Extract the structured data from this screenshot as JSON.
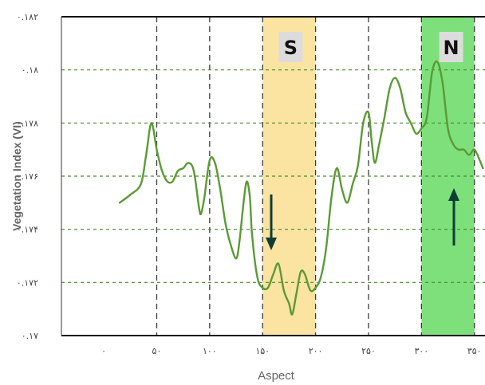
{
  "chart_data": {
    "type": "line",
    "title": "",
    "xlabel": "Aspect",
    "ylabel": "Vegetation Index (VI)",
    "xlim": [
      -40,
      360
    ],
    "ylim": [
      0.17,
      0.182
    ],
    "x_ticks": [
      0,
      50,
      100,
      150,
      200,
      250,
      300,
      350
    ],
    "x_tick_labels": [
      "۰",
      "۵۰",
      "۱۰۰",
      "۱۵۰",
      "۲۰۰",
      "۲۵۰",
      "۳۰۰",
      "۳۵۰"
    ],
    "y_ticks": [
      0.17,
      0.172,
      0.174,
      0.176,
      0.178,
      0.18,
      0.182
    ],
    "y_tick_labels": [
      "۰.۱۷",
      "۰.۱۷۲",
      "۰.۱۷۴",
      "۰.۱۷۶",
      "۰.۱۷۸",
      "۰.۱۸",
      "۰.۱۸۲"
    ],
    "grid": true,
    "series": [
      {
        "color": "#5b9a34",
        "points": [
          [
            15,
            0.175
          ],
          [
            25,
            0.1753
          ],
          [
            35,
            0.1757
          ],
          [
            40,
            0.1768
          ],
          [
            45,
            0.178
          ],
          [
            50,
            0.177
          ],
          [
            55,
            0.1762
          ],
          [
            60,
            0.1758
          ],
          [
            65,
            0.1758
          ],
          [
            70,
            0.1762
          ],
          [
            75,
            0.1763
          ],
          [
            80,
            0.1765
          ],
          [
            85,
            0.1762
          ],
          [
            90,
            0.1748
          ],
          [
            92,
            0.1746
          ],
          [
            95,
            0.1752
          ],
          [
            100,
            0.1766
          ],
          [
            105,
            0.1765
          ],
          [
            110,
            0.1755
          ],
          [
            115,
            0.1742
          ],
          [
            120,
            0.1734
          ],
          [
            125,
            0.1729
          ],
          [
            128,
            0.1735
          ],
          [
            132,
            0.175
          ],
          [
            135,
            0.1758
          ],
          [
            138,
            0.1752
          ],
          [
            140,
            0.1738
          ],
          [
            145,
            0.1722
          ],
          [
            150,
            0.1718
          ],
          [
            155,
            0.1718
          ],
          [
            160,
            0.1723
          ],
          [
            165,
            0.1727
          ],
          [
            170,
            0.1717
          ],
          [
            175,
            0.1712
          ],
          [
            178,
            0.1708
          ],
          [
            182,
            0.1716
          ],
          [
            186,
            0.1724
          ],
          [
            190,
            0.1723
          ],
          [
            195,
            0.1717
          ],
          [
            200,
            0.1718
          ],
          [
            205,
            0.1722
          ],
          [
            210,
            0.1733
          ],
          [
            215,
            0.1752
          ],
          [
            220,
            0.1763
          ],
          [
            225,
            0.1755
          ],
          [
            230,
            0.175
          ],
          [
            235,
            0.1757
          ],
          [
            240,
            0.1764
          ],
          [
            245,
            0.178
          ],
          [
            250,
            0.1784
          ],
          [
            253,
            0.1773
          ],
          [
            256,
            0.1765
          ],
          [
            260,
            0.1772
          ],
          [
            265,
            0.1782
          ],
          [
            270,
            0.1793
          ],
          [
            275,
            0.1797
          ],
          [
            280,
            0.1793
          ],
          [
            285,
            0.1784
          ],
          [
            290,
            0.178
          ],
          [
            295,
            0.1776
          ],
          [
            300,
            0.1778
          ],
          [
            305,
            0.1782
          ],
          [
            310,
            0.1799
          ],
          [
            315,
            0.1803
          ],
          [
            320,
            0.1795
          ],
          [
            325,
            0.1778
          ],
          [
            330,
            0.1772
          ],
          [
            335,
            0.177
          ],
          [
            340,
            0.177
          ],
          [
            345,
            0.1768
          ],
          [
            350,
            0.177
          ],
          [
            355,
            0.1766
          ],
          [
            358,
            0.1763
          ]
        ]
      }
    ],
    "bands": [
      {
        "label": "S",
        "x": [
          150,
          200
        ],
        "color": "#fbe3a2",
        "arrow": "down"
      },
      {
        "label": "N",
        "x": [
          300,
          350
        ],
        "color": "#7de07b",
        "arrow": "up"
      }
    ]
  }
}
